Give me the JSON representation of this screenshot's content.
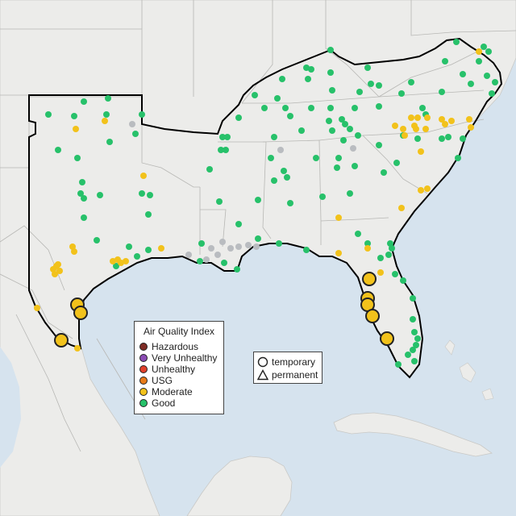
{
  "legend": {
    "title": "Air Quality Index",
    "items": [
      {
        "label": "Hazardous",
        "color": "#7e2c25"
      },
      {
        "label": "Very Unhealthy",
        "color": "#8a4bb3"
      },
      {
        "label": "Unhealthy",
        "color": "#e0402b"
      },
      {
        "label": "USG",
        "color": "#e77b1a"
      },
      {
        "label": "Moderate",
        "color": "#f2c21b"
      },
      {
        "label": "Good",
        "color": "#27c16a"
      }
    ]
  },
  "shape_legend": {
    "temporary": "temporary",
    "permanent": "permanent"
  },
  "colors": {
    "land": "#ececea",
    "water": "#d6e3ee",
    "good": "#27c16a",
    "moderate": "#f2c21b",
    "nodata": "#b9bcc0",
    "outline": "#000000"
  }
}
